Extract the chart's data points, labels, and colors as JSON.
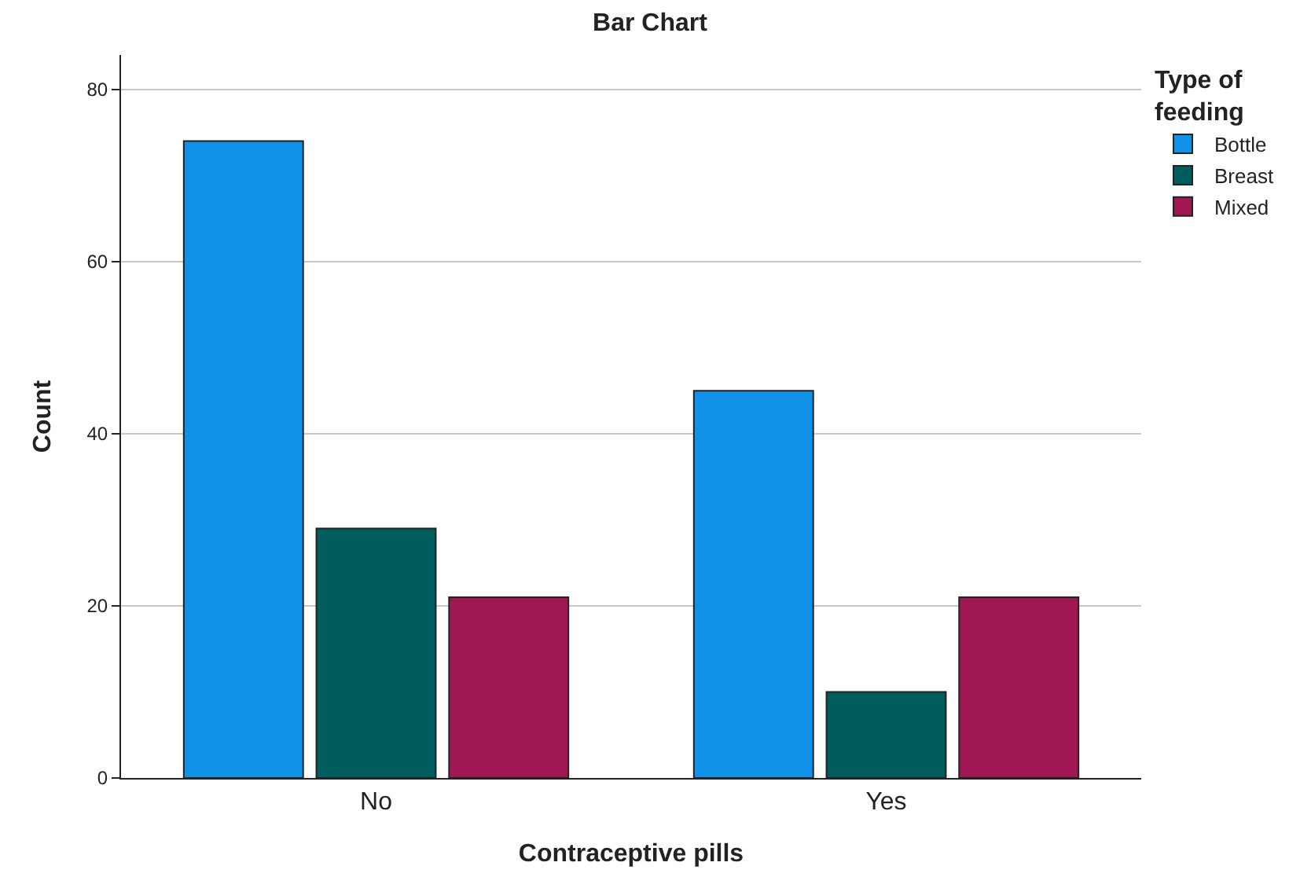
{
  "chart_data": {
    "type": "bar",
    "title": "Bar Chart",
    "xlabel": "Contraceptive pills",
    "ylabel": "Count",
    "legend_title": "Type of feeding",
    "categories": [
      "No",
      "Yes"
    ],
    "series": [
      {
        "name": "Bottle",
        "color": "#1192e8",
        "values": [
          74,
          45
        ]
      },
      {
        "name": "Breast",
        "color": "#005d5d",
        "values": [
          29,
          10
        ]
      },
      {
        "name": "Mixed",
        "color": "#9f1853",
        "values": [
          21,
          21
        ]
      }
    ],
    "ylim": [
      0,
      84
    ],
    "yticks": [
      0,
      20,
      40,
      60,
      80
    ],
    "grid": "y",
    "legend": "top right"
  }
}
